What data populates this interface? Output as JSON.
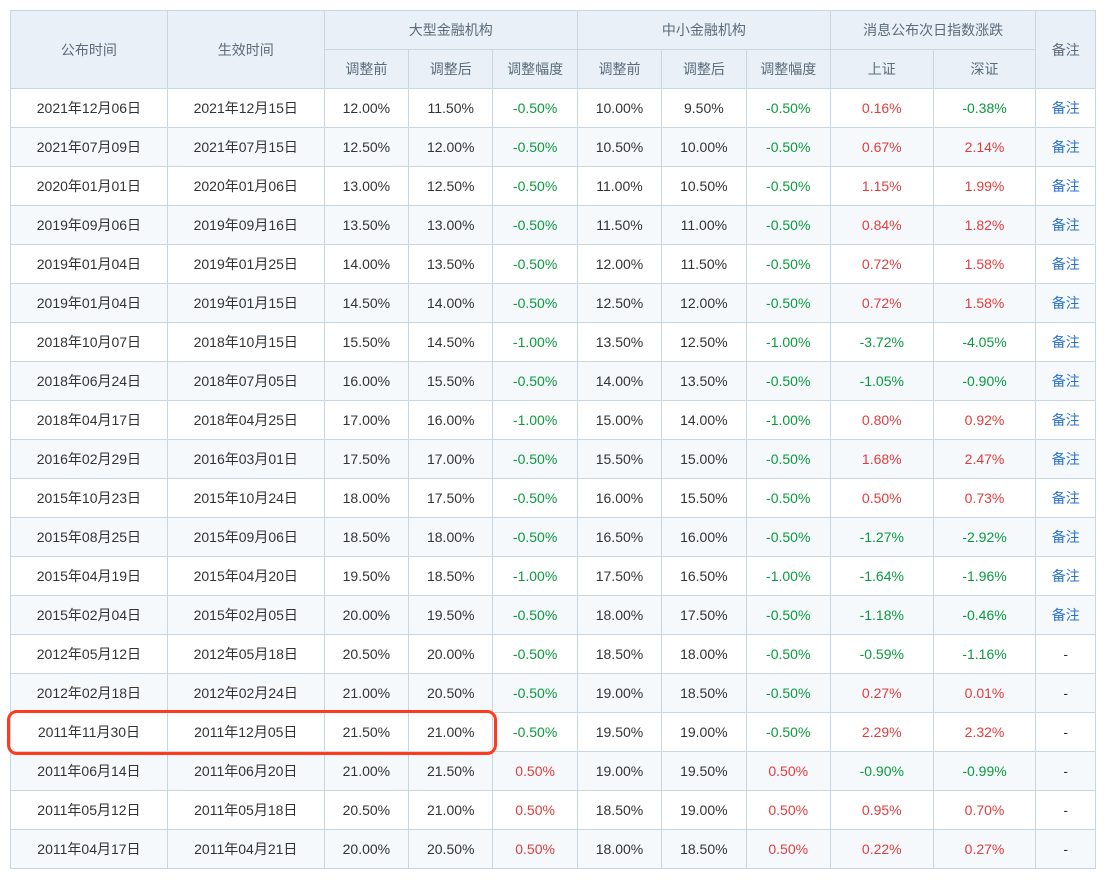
{
  "header": {
    "announce": "公布时间",
    "effect": "生效时间",
    "large_group": "大型金融机构",
    "small_group": "中小金融机构",
    "index_group": "消息公布次日指数涨跌",
    "before": "调整前",
    "after": "调整后",
    "change": "调整幅度",
    "sh": "上证",
    "sz": "深证",
    "note": "备注"
  },
  "note_link_text": "备注",
  "colors": {
    "negative": "#0a9a3d",
    "positive": "#e23c3c",
    "link": "#2b73c9",
    "header_bg": "#e9f0f7",
    "border": "#c8d6e2",
    "alt_row_bg": "#f5f9fc",
    "highlight": "#ff3b1f"
  },
  "highlight_row_index": 16,
  "rows": [
    {
      "announce": "2021年12月06日",
      "effect": "2021年12月15日",
      "lg_before": "12.00%",
      "lg_after": "11.50%",
      "lg_chg": "-0.50%",
      "sm_before": "10.00%",
      "sm_after": "9.50%",
      "sm_chg": "-0.50%",
      "sh": "0.16%",
      "sz": "-0.38%",
      "note": true
    },
    {
      "announce": "2021年07月09日",
      "effect": "2021年07月15日",
      "lg_before": "12.50%",
      "lg_after": "12.00%",
      "lg_chg": "-0.50%",
      "sm_before": "10.50%",
      "sm_after": "10.00%",
      "sm_chg": "-0.50%",
      "sh": "0.67%",
      "sz": "2.14%",
      "note": true
    },
    {
      "announce": "2020年01月01日",
      "effect": "2020年01月06日",
      "lg_before": "13.00%",
      "lg_after": "12.50%",
      "lg_chg": "-0.50%",
      "sm_before": "11.00%",
      "sm_after": "10.50%",
      "sm_chg": "-0.50%",
      "sh": "1.15%",
      "sz": "1.99%",
      "note": true
    },
    {
      "announce": "2019年09月06日",
      "effect": "2019年09月16日",
      "lg_before": "13.50%",
      "lg_after": "13.00%",
      "lg_chg": "-0.50%",
      "sm_before": "11.50%",
      "sm_after": "11.00%",
      "sm_chg": "-0.50%",
      "sh": "0.84%",
      "sz": "1.82%",
      "note": true
    },
    {
      "announce": "2019年01月04日",
      "effect": "2019年01月25日",
      "lg_before": "14.00%",
      "lg_after": "13.50%",
      "lg_chg": "-0.50%",
      "sm_before": "12.00%",
      "sm_after": "11.50%",
      "sm_chg": "-0.50%",
      "sh": "0.72%",
      "sz": "1.58%",
      "note": true
    },
    {
      "announce": "2019年01月04日",
      "effect": "2019年01月15日",
      "lg_before": "14.50%",
      "lg_after": "14.00%",
      "lg_chg": "-0.50%",
      "sm_before": "12.50%",
      "sm_after": "12.00%",
      "sm_chg": "-0.50%",
      "sh": "0.72%",
      "sz": "1.58%",
      "note": true
    },
    {
      "announce": "2018年10月07日",
      "effect": "2018年10月15日",
      "lg_before": "15.50%",
      "lg_after": "14.50%",
      "lg_chg": "-1.00%",
      "sm_before": "13.50%",
      "sm_after": "12.50%",
      "sm_chg": "-1.00%",
      "sh": "-3.72%",
      "sz": "-4.05%",
      "note": true
    },
    {
      "announce": "2018年06月24日",
      "effect": "2018年07月05日",
      "lg_before": "16.00%",
      "lg_after": "15.50%",
      "lg_chg": "-0.50%",
      "sm_before": "14.00%",
      "sm_after": "13.50%",
      "sm_chg": "-0.50%",
      "sh": "-1.05%",
      "sz": "-0.90%",
      "note": true
    },
    {
      "announce": "2018年04月17日",
      "effect": "2018年04月25日",
      "lg_before": "17.00%",
      "lg_after": "16.00%",
      "lg_chg": "-1.00%",
      "sm_before": "15.00%",
      "sm_after": "14.00%",
      "sm_chg": "-1.00%",
      "sh": "0.80%",
      "sz": "0.92%",
      "note": true
    },
    {
      "announce": "2016年02月29日",
      "effect": "2016年03月01日",
      "lg_before": "17.50%",
      "lg_after": "17.00%",
      "lg_chg": "-0.50%",
      "sm_before": "15.50%",
      "sm_after": "15.00%",
      "sm_chg": "-0.50%",
      "sh": "1.68%",
      "sz": "2.47%",
      "note": true
    },
    {
      "announce": "2015年10月23日",
      "effect": "2015年10月24日",
      "lg_before": "18.00%",
      "lg_after": "17.50%",
      "lg_chg": "-0.50%",
      "sm_before": "16.00%",
      "sm_after": "15.50%",
      "sm_chg": "-0.50%",
      "sh": "0.50%",
      "sz": "0.73%",
      "note": true
    },
    {
      "announce": "2015年08月25日",
      "effect": "2015年09月06日",
      "lg_before": "18.50%",
      "lg_after": "18.00%",
      "lg_chg": "-0.50%",
      "sm_before": "16.50%",
      "sm_after": "16.00%",
      "sm_chg": "-0.50%",
      "sh": "-1.27%",
      "sz": "-2.92%",
      "note": true
    },
    {
      "announce": "2015年04月19日",
      "effect": "2015年04月20日",
      "lg_before": "19.50%",
      "lg_after": "18.50%",
      "lg_chg": "-1.00%",
      "sm_before": "17.50%",
      "sm_after": "16.50%",
      "sm_chg": "-1.00%",
      "sh": "-1.64%",
      "sz": "-1.96%",
      "note": true
    },
    {
      "announce": "2015年02月04日",
      "effect": "2015年02月05日",
      "lg_before": "20.00%",
      "lg_after": "19.50%",
      "lg_chg": "-0.50%",
      "sm_before": "18.00%",
      "sm_after": "17.50%",
      "sm_chg": "-0.50%",
      "sh": "-1.18%",
      "sz": "-0.46%",
      "note": true
    },
    {
      "announce": "2012年05月12日",
      "effect": "2012年05月18日",
      "lg_before": "20.50%",
      "lg_after": "20.00%",
      "lg_chg": "-0.50%",
      "sm_before": "18.50%",
      "sm_after": "18.00%",
      "sm_chg": "-0.50%",
      "sh": "-0.59%",
      "sz": "-1.16%",
      "note": false
    },
    {
      "announce": "2012年02月18日",
      "effect": "2012年02月24日",
      "lg_before": "21.00%",
      "lg_after": "20.50%",
      "lg_chg": "-0.50%",
      "sm_before": "19.00%",
      "sm_after": "18.50%",
      "sm_chg": "-0.50%",
      "sh": "0.27%",
      "sz": "0.01%",
      "note": false
    },
    {
      "announce": "2011年11月30日",
      "effect": "2011年12月05日",
      "lg_before": "21.50%",
      "lg_after": "21.00%",
      "lg_chg": "-0.50%",
      "sm_before": "19.50%",
      "sm_after": "19.00%",
      "sm_chg": "-0.50%",
      "sh": "2.29%",
      "sz": "2.32%",
      "note": false
    },
    {
      "announce": "2011年06月14日",
      "effect": "2011年06月20日",
      "lg_before": "21.00%",
      "lg_after": "21.50%",
      "lg_chg": "0.50%",
      "sm_before": "19.00%",
      "sm_after": "19.50%",
      "sm_chg": "0.50%",
      "sh": "-0.90%",
      "sz": "-0.99%",
      "note": false
    },
    {
      "announce": "2011年05月12日",
      "effect": "2011年05月18日",
      "lg_before": "20.50%",
      "lg_after": "21.00%",
      "lg_chg": "0.50%",
      "sm_before": "18.50%",
      "sm_after": "19.00%",
      "sm_chg": "0.50%",
      "sh": "0.95%",
      "sz": "0.70%",
      "note": false
    },
    {
      "announce": "2011年04月17日",
      "effect": "2011年04月21日",
      "lg_before": "20.00%",
      "lg_after": "20.50%",
      "lg_chg": "0.50%",
      "sm_before": "18.00%",
      "sm_after": "18.50%",
      "sm_chg": "0.50%",
      "sh": "0.22%",
      "sz": "0.27%",
      "note": false
    }
  ]
}
